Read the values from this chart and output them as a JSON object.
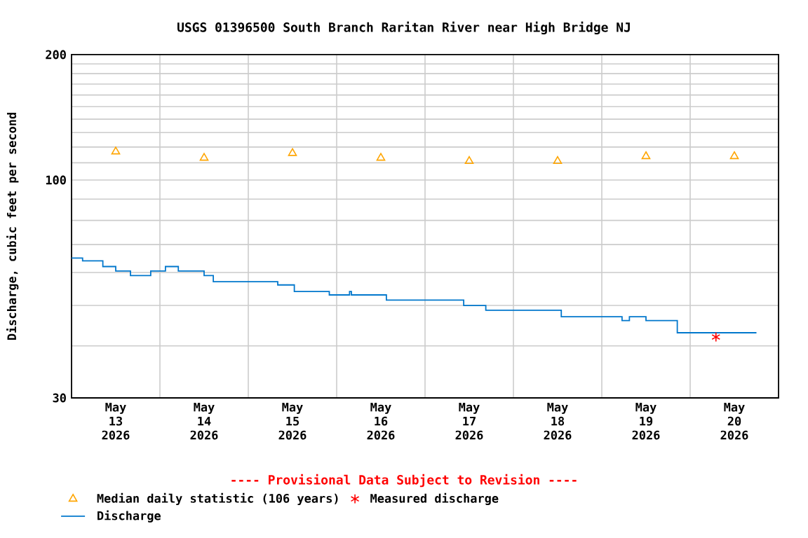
{
  "chart_data": {
    "type": "step",
    "title": "USGS 01396500 South Branch Raritan River near High Bridge NJ",
    "ylabel": "Discharge, cubic feet per second",
    "annotations": [
      "---- Provisional Data Subject to Revision ----"
    ],
    "log": true,
    "grid": true,
    "legend": "bottom",
    "xlim": [
      "2026-05-13",
      "2026-05-21"
    ],
    "xticks": [
      {
        "value": "2026-05-13",
        "label": null
      },
      {
        "value": "2026-05-14",
        "label": null
      },
      {
        "value": "2026-05-15",
        "label": null
      },
      {
        "value": "2026-05-16",
        "label": null
      },
      {
        "value": "2026-05-17",
        "label": null
      },
      {
        "value": "2026-05-18",
        "label": null
      },
      {
        "value": "2026-05-19",
        "label": null
      },
      {
        "value": "2026-05-20",
        "label": null
      },
      {
        "value": "2026-05-21",
        "label": null
      },
      {
        "value": "2026-05-13T12:00",
        "label": "May 13 2026"
      },
      {
        "value": "2026-05-14T12:00",
        "label": "May 14 2026"
      },
      {
        "value": "2026-05-15T12:00",
        "label": "May 15 2026"
      },
      {
        "value": "2026-05-16T12:00",
        "label": "May 16 2026"
      },
      {
        "value": "2026-05-17T12:00",
        "label": "May 17 2026"
      },
      {
        "value": "2026-05-18T12:00",
        "label": "May 18 2026"
      },
      {
        "value": "2026-05-19T12:00",
        "label": "May 19 2026"
      },
      {
        "value": "2026-05-20T12:00",
        "label": "May 20 2026"
      }
    ],
    "ylim": [
      30,
      200
    ],
    "yticks": [
      30,
      {
        "value": 40,
        "label": null
      },
      {
        "value": 50,
        "label": null
      },
      {
        "value": 60,
        "label": null
      },
      {
        "value": 70,
        "label": null
      },
      {
        "value": 80,
        "label": null
      },
      {
        "value": 90,
        "label": null
      },
      100,
      {
        "value": 110,
        "label": null
      },
      {
        "value": 120,
        "label": null
      },
      {
        "value": 130,
        "label": null
      },
      {
        "value": 140,
        "label": null
      },
      {
        "value": 150,
        "label": null
      },
      {
        "value": 160,
        "label": null
      },
      {
        "value": 170,
        "label": null
      },
      {
        "value": 180,
        "label": null
      },
      {
        "value": 190,
        "label": null
      },
      200
    ],
    "series": [
      {
        "name": "Median daily statistic (106 years)",
        "type": "scatter",
        "marker": "triangle",
        "color": "#ffa500",
        "x": [
          "2026-05-13T12:00",
          "2026-05-14T12:00",
          "2026-05-15T12:00",
          "2026-05-16T12:00",
          "2026-05-17T12:00",
          "2026-05-18T12:00",
          "2026-05-19T12:00",
          "2026-05-20T12:00"
        ],
        "values": [
          117,
          113,
          116,
          113,
          111,
          111,
          114,
          114
        ]
      },
      {
        "name": "Measured discharge",
        "type": "scatter",
        "marker": "cross",
        "color": "#ff0000",
        "x": [
          "2026-05-20T07:00"
        ],
        "values": [
          42
        ]
      },
      {
        "name": "Discharge",
        "marker": "none",
        "color": "#0077cc",
        "x": [
          "2026-05-13T00:00",
          "2026-05-13T03:00",
          "2026-05-13T08:30",
          "2026-05-13T12:00",
          "2026-05-13T16:00",
          "2026-05-13T21:30",
          "2026-05-14T01:30",
          "2026-05-14T05:00",
          "2026-05-14T12:00",
          "2026-05-14T14:30",
          "2026-05-15T08:00",
          "2026-05-15T12:30",
          "2026-05-15T22:00",
          "2026-05-16T03:30",
          "2026-05-16T04:00",
          "2026-05-16T13:30",
          "2026-05-17T10:30",
          "2026-05-17T16:30",
          "2026-05-18T13:00",
          "2026-05-19T05:30",
          "2026-05-19T07:30",
          "2026-05-19T12:00",
          "2026-05-19T20:30",
          "2026-05-20T18:00"
        ],
        "values": [
          65,
          64,
          62,
          60.5,
          59,
          60.5,
          62,
          60.5,
          59,
          57,
          56,
          54,
          53,
          54,
          53,
          51.5,
          50,
          48.7,
          47,
          46,
          47,
          46,
          43,
          43
        ]
      }
    ]
  }
}
